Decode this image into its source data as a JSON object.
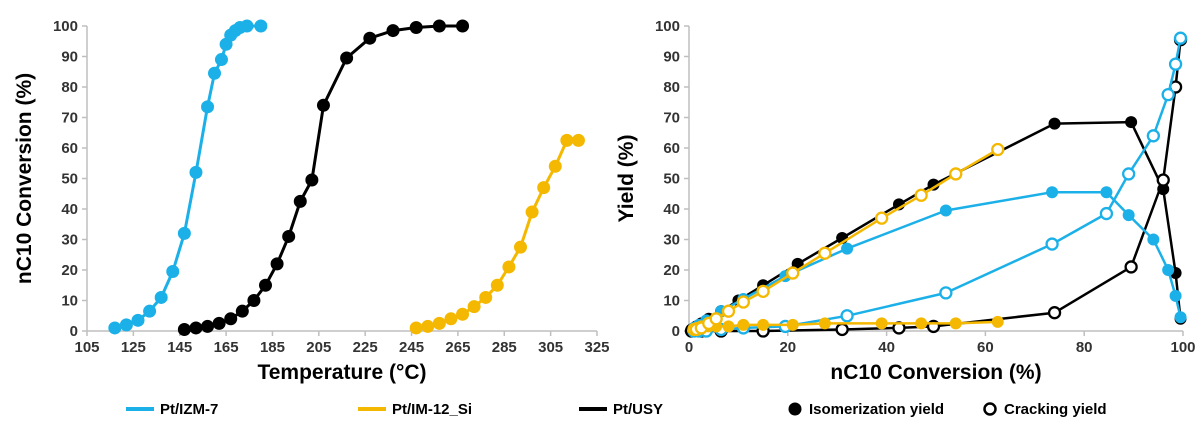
{
  "colors": {
    "izm7": "#1cb0e8",
    "im12": "#f5b800",
    "usy": "#000000",
    "axis": "#bfbfbf"
  },
  "legend": {
    "izm7": "Pt/IZM-7",
    "im12": "Pt/IM-12_Si",
    "usy": "Pt/USY",
    "iso": "Isomerization yield",
    "crack": "Cracking yield"
  },
  "chart_data": [
    {
      "type": "line",
      "xlabel": "Temperature (°C)",
      "ylabel": "nC10 Conversion (%)",
      "xlim": [
        105,
        325
      ],
      "ylim": [
        0,
        100
      ],
      "xticks": [
        105,
        125,
        145,
        165,
        185,
        205,
        225,
        245,
        265,
        285,
        305,
        325
      ],
      "yticks": [
        0,
        10,
        20,
        30,
        40,
        50,
        60,
        70,
        80,
        90,
        100
      ],
      "series": [
        {
          "name": "Pt/IZM-7",
          "x": [
            117,
            122,
            127,
            132,
            137,
            142,
            147,
            152,
            157,
            160,
            163,
            165,
            167,
            169,
            171,
            174,
            180
          ],
          "y": [
            1,
            2,
            3.5,
            6.5,
            11,
            19.5,
            32,
            52,
            73.5,
            84.5,
            89,
            94,
            97,
            98.5,
            99.5,
            100,
            100
          ]
        },
        {
          "name": "Pt/USY",
          "x": [
            147,
            152,
            157,
            162,
            167,
            172,
            177,
            182,
            187,
            192,
            197,
            202,
            207,
            217,
            227,
            237,
            247,
            257,
            267
          ],
          "y": [
            0.5,
            1,
            1.5,
            2.5,
            4,
            6.5,
            10,
            15,
            22,
            31,
            42.5,
            49.5,
            74,
            89.5,
            96,
            98.5,
            99.5,
            100,
            100
          ]
        },
        {
          "name": "Pt/IM-12_Si",
          "x": [
            247,
            252,
            257,
            262,
            267,
            272,
            277,
            282,
            287,
            292,
            297,
            302,
            307,
            312,
            317
          ],
          "y": [
            1,
            1.5,
            2.5,
            4,
            5.5,
            8,
            11,
            15,
            21,
            27.5,
            39,
            47,
            54,
            62.5,
            62.5
          ]
        }
      ]
    },
    {
      "type": "scatter",
      "xlabel": "nC10 Conversion (%)",
      "ylabel": "Yield (%)",
      "xlim": [
        0,
        100
      ],
      "ylim": [
        0,
        100
      ],
      "xticks": [
        0,
        20,
        40,
        60,
        80,
        100
      ],
      "yticks": [
        0,
        10,
        20,
        30,
        40,
        50,
        60,
        70,
        80,
        90,
        100
      ],
      "series": [
        {
          "name": "Pt/USY",
          "kind": "Isomerization yield",
          "x": [
            0.5,
            1,
            1.5,
            2.5,
            4,
            6.5,
            10,
            15,
            22,
            31,
            42.5,
            49.5,
            74,
            89.5,
            96,
            98.5,
            99.5
          ],
          "y": [
            0.5,
            1,
            1.5,
            2.5,
            4,
            6.5,
            10,
            15,
            22,
            30.5,
            41.5,
            48,
            68,
            68.5,
            46.5,
            19,
            4
          ]
        },
        {
          "name": "Pt/USY",
          "kind": "Cracking yield",
          "x": [
            0.5,
            2.5,
            6.5,
            15,
            31,
            42.5,
            49.5,
            74,
            89.5,
            96,
            98.5,
            99.5
          ],
          "y": [
            0,
            0,
            0,
            0,
            0.5,
            1,
            1.5,
            6,
            21,
            49.5,
            80,
            95.5
          ]
        },
        {
          "name": "Pt/IZM-7",
          "kind": "Isomerization yield",
          "x": [
            1,
            2,
            3.5,
            6.5,
            11,
            19.5,
            32,
            52,
            73.5,
            84.5,
            89,
            94,
            97,
            98.5,
            99.5
          ],
          "y": [
            1,
            2,
            3.5,
            6.5,
            10.5,
            18,
            27,
            39.5,
            45.5,
            45.5,
            38,
            30,
            20,
            11.5,
            4.5
          ]
        },
        {
          "name": "Pt/IZM-7",
          "kind": "Cracking yield",
          "x": [
            1,
            2,
            3.5,
            6.5,
            11,
            19.5,
            32,
            52,
            73.5,
            84.5,
            89,
            94,
            97,
            98.5,
            99.5
          ],
          "y": [
            0,
            0,
            0,
            0.5,
            1,
            1.5,
            5,
            12.5,
            28.5,
            38.5,
            51.5,
            64,
            77.5,
            87.5,
            96
          ]
        },
        {
          "name": "Pt/IM-12_Si",
          "kind": "Isomerization yield",
          "x": [
            1,
            1.5,
            2.5,
            4,
            5.5,
            8,
            11,
            15,
            21,
            27.5,
            39,
            47,
            54,
            62.5
          ],
          "y": [
            0.5,
            1,
            1.5,
            1.5,
            1.5,
            1.5,
            2,
            2,
            2,
            2.5,
            2.5,
            2.5,
            2.5,
            3
          ]
        },
        {
          "name": "Pt/IM-12_Si",
          "kind": "Cracking yield",
          "x": [
            1,
            1.5,
            2.5,
            4,
            5.5,
            8,
            11,
            15,
            21,
            27.5,
            39,
            47,
            54,
            62.5
          ],
          "y": [
            0.5,
            0.5,
            1,
            2.5,
            4,
            6.5,
            9.5,
            13,
            19,
            25.5,
            37,
            44.5,
            51.5,
            59.5
          ]
        }
      ]
    }
  ]
}
